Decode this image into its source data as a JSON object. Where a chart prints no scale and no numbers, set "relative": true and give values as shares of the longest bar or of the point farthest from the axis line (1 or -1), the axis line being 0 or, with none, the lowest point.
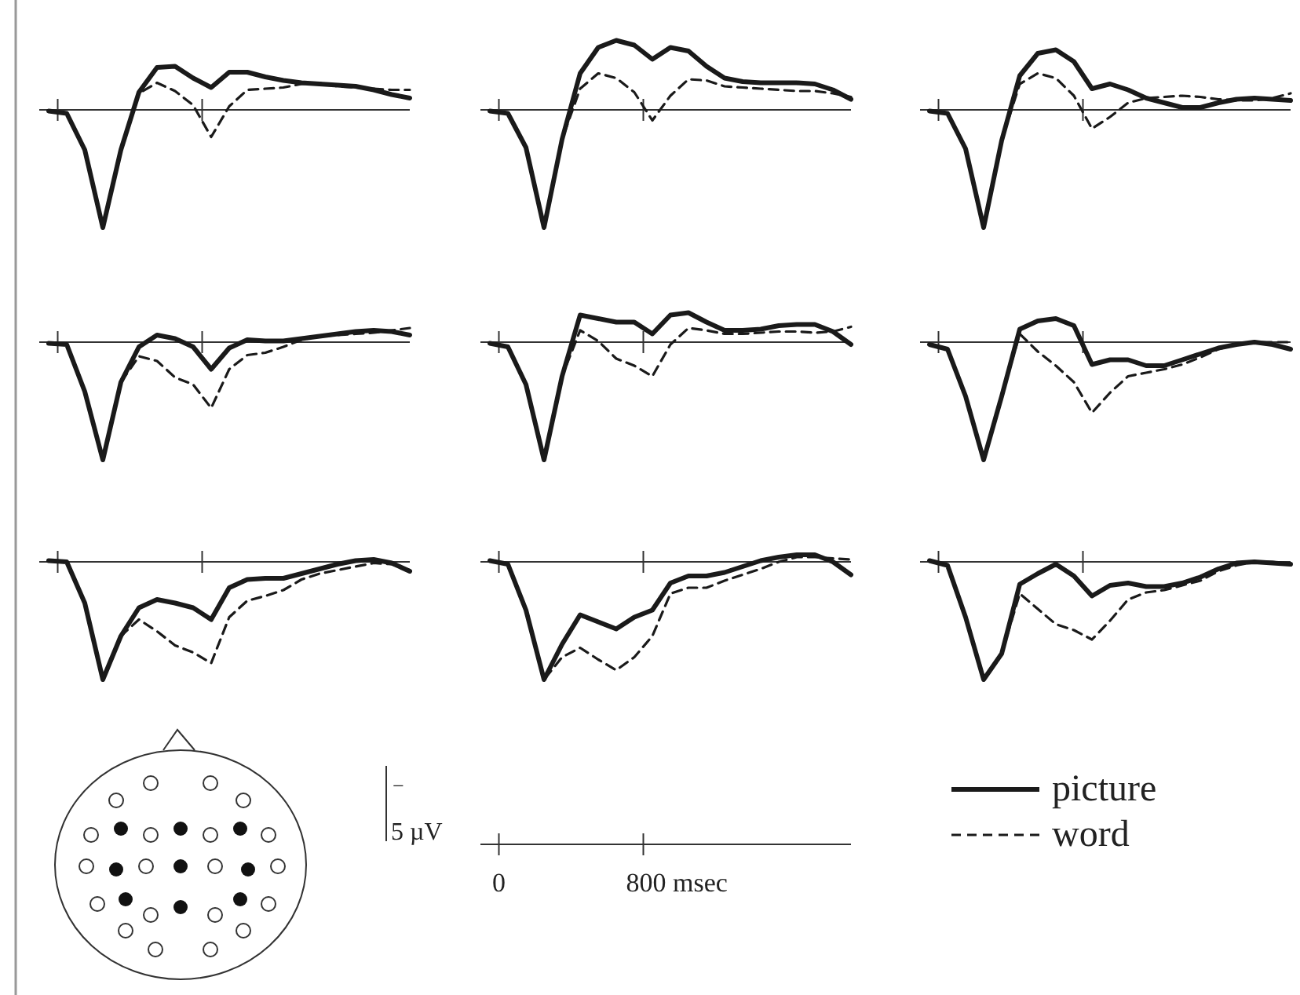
{
  "chart_data": [
    {
      "type": "line",
      "relative": true,
      "categories": [
        null,
        null,
        null,
        null,
        null,
        null,
        null,
        null,
        null,
        null,
        null,
        null,
        null,
        null,
        null,
        null,
        null,
        null,
        null,
        null,
        null
      ],
      "series": [
        {
          "color": "#1a1a1a",
          "line_style": "solid",
          "values": [
            -0.01,
            -0.03,
            -0.34,
            -1,
            -0.34,
            0.15,
            0.36,
            0.37,
            0.27,
            0.19,
            0.32,
            0.32,
            0.28,
            0.25,
            0.23,
            0.22,
            0.21,
            0.2,
            0.17,
            0.13,
            0.1
          ]
        },
        {
          "color": "#1a1a1a",
          "line_style": "dashed",
          "values": [
            -0.01,
            -0.03,
            -0.34,
            -1,
            -0.34,
            0.14,
            0.23,
            0.16,
            0.04,
            -0.23,
            0.03,
            0.17,
            0.18,
            0.19,
            0.22,
            0.23,
            0.2,
            0.19,
            0.18,
            0.17,
            0.17
          ]
        }
      ]
    },
    {
      "type": "line",
      "relative": true,
      "categories": [
        null,
        null,
        null,
        null,
        null,
        null,
        null,
        null,
        null,
        null,
        null,
        null,
        null,
        null,
        null,
        null,
        null,
        null,
        null,
        null,
        null
      ],
      "series": [
        {
          "color": "#1a1a1a",
          "line_style": "solid",
          "values": [
            -0.01,
            -0.03,
            -0.32,
            -1,
            -0.25,
            0.31,
            0.53,
            0.59,
            0.55,
            0.43,
            0.53,
            0.5,
            0.37,
            0.27,
            0.24,
            0.23,
            0.23,
            0.23,
            0.22,
            0.17,
            0.09
          ]
        },
        {
          "color": "#1a1a1a",
          "line_style": "dashed",
          "values": [
            -0.01,
            -0.03,
            -0.32,
            -1,
            -0.25,
            0.18,
            0.31,
            0.27,
            0.15,
            -0.09,
            0.12,
            0.26,
            0.25,
            0.2,
            0.19,
            0.18,
            0.17,
            0.16,
            0.16,
            0.14,
            0.11
          ]
        }
      ]
    },
    {
      "type": "line",
      "relative": true,
      "categories": [
        null,
        null,
        null,
        null,
        null,
        null,
        null,
        null,
        null,
        null,
        null,
        null,
        null,
        null,
        null,
        null,
        null,
        null,
        null,
        null,
        null
      ],
      "series": [
        {
          "color": "#1a1a1a",
          "line_style": "solid",
          "values": [
            -0.01,
            -0.03,
            -0.33,
            -1,
            -0.26,
            0.29,
            0.48,
            0.51,
            0.41,
            0.18,
            0.22,
            0.17,
            0.1,
            0.06,
            0.02,
            0.02,
            0.06,
            0.09,
            0.1,
            0.09,
            0.08
          ]
        },
        {
          "color": "#1a1a1a",
          "line_style": "dashed",
          "values": [
            -0.01,
            -0.03,
            -0.33,
            -1,
            -0.26,
            0.22,
            0.31,
            0.27,
            0.12,
            -0.16,
            -0.06,
            0.06,
            0.1,
            0.11,
            0.12,
            0.11,
            0.09,
            0.08,
            0.08,
            0.1,
            0.14
          ]
        }
      ]
    },
    {
      "type": "line",
      "relative": true,
      "categories": [
        null,
        null,
        null,
        null,
        null,
        null,
        null,
        null,
        null,
        null,
        null,
        null,
        null,
        null,
        null,
        null,
        null,
        null,
        null,
        null,
        null
      ],
      "series": [
        {
          "color": "#1a1a1a",
          "line_style": "solid",
          "values": [
            -0.01,
            -0.02,
            -0.42,
            -1,
            -0.34,
            -0.04,
            0.06,
            0.03,
            -0.04,
            -0.23,
            -0.05,
            0.02,
            0.01,
            0.01,
            0.03,
            0.05,
            0.07,
            0.09,
            0.1,
            0.09,
            0.06
          ]
        },
        {
          "color": "#1a1a1a",
          "line_style": "dashed",
          "values": [
            -0.01,
            -0.02,
            -0.42,
            -1,
            -0.34,
            -0.12,
            -0.16,
            -0.3,
            -0.36,
            -0.56,
            -0.23,
            -0.11,
            -0.09,
            -0.04,
            0.02,
            0.05,
            0.06,
            0.07,
            0.08,
            0.1,
            0.12
          ]
        }
      ]
    },
    {
      "type": "line",
      "relative": true,
      "categories": [
        null,
        null,
        null,
        null,
        null,
        null,
        null,
        null,
        null,
        null,
        null,
        null,
        null,
        null,
        null,
        null,
        null,
        null,
        null,
        null,
        null
      ],
      "series": [
        {
          "color": "#1a1a1a",
          "line_style": "solid",
          "values": [
            -0.01,
            -0.04,
            -0.36,
            -1,
            -0.29,
            0.23,
            0.2,
            0.17,
            0.17,
            0.07,
            0.23,
            0.25,
            0.17,
            0.1,
            0.1,
            0.11,
            0.14,
            0.15,
            0.15,
            0.09,
            -0.02
          ]
        },
        {
          "color": "#1a1a1a",
          "line_style": "dashed",
          "values": [
            -0.01,
            -0.04,
            -0.36,
            -1,
            -0.29,
            0.1,
            0.01,
            -0.14,
            -0.2,
            -0.29,
            -0.02,
            0.12,
            0.1,
            0.07,
            0.07,
            0.08,
            0.09,
            0.09,
            0.08,
            0.09,
            0.13
          ]
        }
      ]
    },
    {
      "type": "line",
      "relative": true,
      "categories": [
        null,
        null,
        null,
        null,
        null,
        null,
        null,
        null,
        null,
        null,
        null,
        null,
        null,
        null,
        null,
        null,
        null,
        null,
        null,
        null,
        null
      ],
      "series": [
        {
          "color": "#1a1a1a",
          "line_style": "solid",
          "values": [
            -0.02,
            -0.06,
            -0.46,
            -1,
            -0.46,
            0.11,
            0.18,
            0.2,
            0.14,
            -0.19,
            -0.15,
            -0.15,
            -0.2,
            -0.2,
            -0.15,
            -0.1,
            -0.05,
            -0.02,
            0,
            -0.02,
            -0.06
          ]
        },
        {
          "color": "#1a1a1a",
          "line_style": "dashed",
          "values": [
            -0.02,
            -0.06,
            -0.46,
            -1,
            -0.46,
            0.07,
            -0.08,
            -0.2,
            -0.34,
            -0.6,
            -0.43,
            -0.29,
            -0.26,
            -0.23,
            -0.19,
            -0.13,
            -0.06,
            -0.02,
            0,
            0,
            0
          ]
        }
      ]
    },
    {
      "type": "line",
      "relative": true,
      "categories": [
        null,
        null,
        null,
        null,
        null,
        null,
        null,
        null,
        null,
        null,
        null,
        null,
        null,
        null,
        null,
        null,
        null,
        null,
        null,
        null,
        null
      ],
      "series": [
        {
          "color": "#1a1a1a",
          "line_style": "solid",
          "values": [
            0.01,
            0,
            -0.35,
            -1,
            -0.63,
            -0.39,
            -0.32,
            -0.35,
            -0.39,
            -0.49,
            -0.22,
            -0.15,
            -0.14,
            -0.14,
            -0.1,
            -0.06,
            -0.02,
            0.01,
            0.02,
            -0.01,
            -0.08
          ]
        },
        {
          "color": "#1a1a1a",
          "line_style": "dashed",
          "values": [
            0.01,
            0,
            -0.35,
            -1,
            -0.63,
            -0.49,
            -0.59,
            -0.71,
            -0.77,
            -0.86,
            -0.47,
            -0.33,
            -0.29,
            -0.24,
            -0.15,
            -0.1,
            -0.07,
            -0.04,
            -0.01,
            -0.02,
            -0.07
          ]
        }
      ]
    },
    {
      "type": "line",
      "relative": true,
      "categories": [
        null,
        null,
        null,
        null,
        null,
        null,
        null,
        null,
        null,
        null,
        null,
        null,
        null,
        null,
        null,
        null,
        null,
        null,
        null,
        null,
        null
      ],
      "annotations": [
        "−",
        "5 µV",
        "0",
        "800 msec"
      ],
      "series": [
        {
          "color": "#1a1a1a",
          "line_style": "solid",
          "values": [
            0.01,
            -0.02,
            -0.41,
            -1,
            -0.7,
            -0.45,
            -0.51,
            -0.57,
            -0.47,
            -0.41,
            -0.18,
            -0.12,
            -0.12,
            -0.09,
            -0.04,
            0.01,
            0.04,
            0.06,
            0.06,
            0,
            -0.11
          ]
        },
        {
          "color": "#1a1a1a",
          "line_style": "dashed",
          "values": [
            0.01,
            -0.02,
            -0.41,
            -1,
            -0.81,
            -0.73,
            -0.83,
            -0.92,
            -0.81,
            -0.63,
            -0.27,
            -0.22,
            -0.22,
            -0.16,
            -0.11,
            -0.06,
            0,
            0.04,
            0.04,
            0.03,
            0.02
          ]
        }
      ]
    },
    {
      "type": "line",
      "relative": true,
      "categories": [
        null,
        null,
        null,
        null,
        null,
        null,
        null,
        null,
        null,
        null,
        null,
        null,
        null,
        null,
        null,
        null,
        null,
        null,
        null,
        null,
        null
      ],
      "legend": "bottom",
      "series": [
        {
          "name": "picture",
          "color": "#1a1a1a",
          "line_style": "solid",
          "values": [
            0.01,
            -0.03,
            -0.47,
            -1,
            -0.78,
            -0.19,
            -0.1,
            -0.02,
            -0.12,
            -0.29,
            -0.2,
            -0.18,
            -0.21,
            -0.21,
            -0.18,
            -0.13,
            -0.06,
            -0.01,
            0,
            -0.01,
            -0.02
          ]
        },
        {
          "name": "word",
          "color": "#1a1a1a",
          "line_style": "dashed",
          "values": [
            0.01,
            -0.03,
            -0.47,
            -1,
            -0.78,
            -0.27,
            -0.4,
            -0.53,
            -0.58,
            -0.66,
            -0.5,
            -0.32,
            -0.26,
            -0.24,
            -0.2,
            -0.16,
            -0.08,
            -0.03,
            0,
            0,
            -0.02
          ]
        }
      ]
    }
  ]
}
